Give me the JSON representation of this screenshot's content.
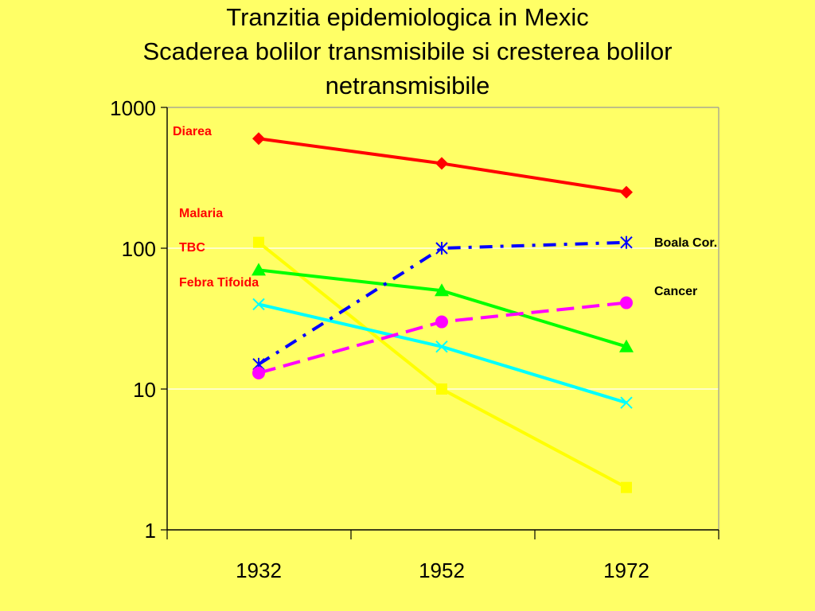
{
  "chart_data": {
    "type": "line",
    "title": "Tranzitia epidemiologica in Mexic",
    "subtitle": "Scaderea bolilor transmisibile si cresterea bolilor netransmisibile",
    "subtitle_lines": [
      "Scaderea bolilor transmisibile si cresterea bolilor",
      "netransmisibile"
    ],
    "y_scale": "log",
    "ylim": [
      1,
      1000
    ],
    "y_ticks": [
      1,
      10,
      100,
      1000
    ],
    "y_tick_labels": [
      "1",
      "10",
      "100",
      "1000"
    ],
    "categories": [
      "1932",
      "1952",
      "1972"
    ],
    "grid": "horizontal major lines",
    "legend": "inline labels",
    "series": [
      {
        "name": "Diarea",
        "values": [
          600,
          400,
          250
        ],
        "color": "#FF0000",
        "marker": "diamond",
        "dash": "solid",
        "label_color": "#FF0000"
      },
      {
        "name": "Malaria",
        "values": [
          110,
          10,
          2
        ],
        "color": "#FFFF00",
        "marker": "square",
        "dash": "solid",
        "label_color": "#FF0000"
      },
      {
        "name": "TBC",
        "values": [
          70,
          50,
          20
        ],
        "color": "#00FF00",
        "marker": "triangle",
        "dash": "solid",
        "label_color": "#FF0000"
      },
      {
        "name": "Febra Tifoida",
        "values": [
          40,
          20,
          8
        ],
        "color": "#00FFFF",
        "marker": "x",
        "dash": "solid",
        "label_color": "#FF0000"
      },
      {
        "name": "Boala Cor.",
        "values": [
          15,
          100,
          110
        ],
        "color": "#0000FF",
        "marker": "asterisk",
        "dash": "dashdot",
        "label_color": "#000000"
      },
      {
        "name": "Cancer",
        "values": [
          13,
          30,
          41
        ],
        "color": "#FF00FF",
        "marker": "circle",
        "dash": "dashed",
        "label_color": "#000000"
      }
    ]
  }
}
